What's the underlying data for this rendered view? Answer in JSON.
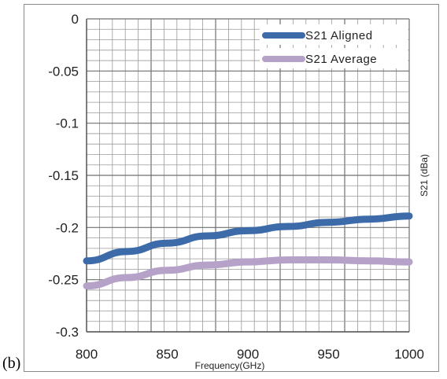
{
  "panel_label": "(b)",
  "chart_data": {
    "type": "line",
    "title": "",
    "xlabel": "Frequency(GHz)",
    "ylabel": "S21 (dBa)",
    "xlim": [
      800,
      1000
    ],
    "ylim": [
      -0.3,
      0
    ],
    "x_ticks": [
      "800",
      "850",
      "900",
      "950",
      "1000"
    ],
    "y_ticks": [
      "0",
      "-0.05",
      "-0.1",
      "-0.15",
      "-0.2",
      "-0.25",
      "-0.3"
    ],
    "grid": true,
    "legend_position": "top-right",
    "series": [
      {
        "name": "S21  Aligned",
        "color": "#3d6aa8",
        "x": [
          800,
          825,
          850,
          875,
          900,
          925,
          950,
          975,
          1000
        ],
        "y": [
          -0.232,
          -0.223,
          -0.215,
          -0.208,
          -0.203,
          -0.199,
          -0.195,
          -0.192,
          -0.189
        ]
      },
      {
        "name": "S21  Average",
        "color": "#b6a2c9",
        "x": [
          800,
          825,
          850,
          875,
          900,
          925,
          950,
          975,
          1000
        ],
        "y": [
          -0.256,
          -0.248,
          -0.241,
          -0.236,
          -0.233,
          -0.231,
          -0.231,
          -0.232,
          -0.233
        ]
      }
    ]
  }
}
